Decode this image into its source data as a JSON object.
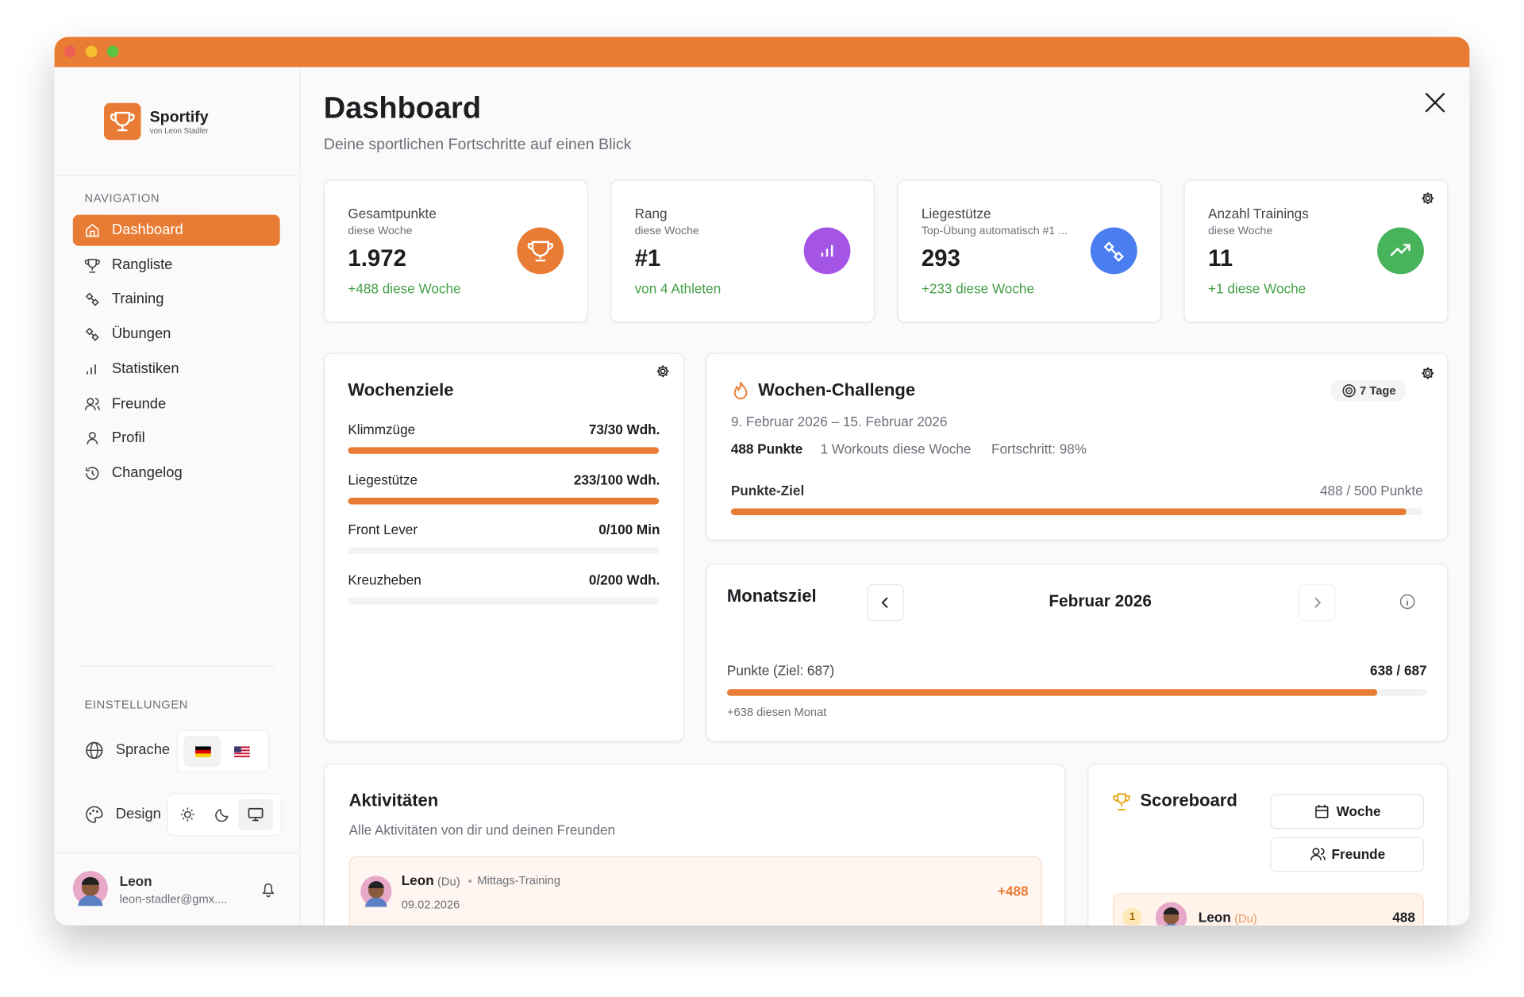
{
  "sidebar": {
    "brand": "Sportify",
    "byline": "von Leon Stadler",
    "nav_heading": "NAVIGATION",
    "nav": [
      "Dashboard",
      "Rangliste",
      "Training",
      "Übungen",
      "Statistiken",
      "Freunde",
      "Profil",
      "Changelog"
    ],
    "settings_heading": "EINSTELLUNGEN",
    "language_label": "Sprache",
    "design_label": "Design",
    "user": {
      "name": "Leon",
      "email": "leon-stadler@gmx...."
    }
  },
  "header": {
    "title": "Dashboard",
    "subtitle": "Deine sportlichen Fortschritte auf einen Blick"
  },
  "stats": [
    {
      "label": "Gesamtpunkte",
      "sub": "diese Woche",
      "value": "1.972",
      "delta": "+488 diese Woche"
    },
    {
      "label": "Rang",
      "sub": "diese Woche",
      "value": "#1",
      "delta": "von 4 Athleten"
    },
    {
      "label": "Liegestütze",
      "sub": "Top-Übung automatisch #1 ...",
      "value": "293",
      "delta": "+233 diese Woche"
    },
    {
      "label": "Anzahl Trainings",
      "sub": "diese Woche",
      "value": "11",
      "delta": "+1 diese Woche"
    }
  ],
  "weekly_goals": {
    "title": "Wochenziele",
    "items": [
      {
        "name": "Klimmzüge",
        "label": "73/30 Wdh.",
        "value": 73,
        "target": 30
      },
      {
        "name": "Liegestütze",
        "label": "233/100 Wdh.",
        "value": 233,
        "target": 100
      },
      {
        "name": "Front Lever",
        "label": "0/100 Min",
        "value": 0,
        "target": 100
      },
      {
        "name": "Kreuzheben",
        "label": "0/200 Wdh.",
        "value": 0,
        "target": 200
      }
    ]
  },
  "challenge": {
    "title": "Wochen-Challenge",
    "badge": "7 Tage",
    "dates": "9. Februar 2026 – 15. Februar 2026",
    "points": "488 Punkte",
    "workouts": "1 Workouts diese Woche",
    "progress": "Fortschritt: 98%",
    "goal_label": "Punkte-Ziel",
    "goal_text": "488 / 500 Punkte",
    "value": 488,
    "target": 500
  },
  "month": {
    "title": "Monatsziel",
    "month": "Februar 2026",
    "label": "Punkte (Ziel: 687)",
    "value_text": "638 / 687",
    "value": 638,
    "target": 687,
    "note": "+638 diesen Monat"
  },
  "activities": {
    "title": "Aktivitäten",
    "subtitle": "Alle Aktivitäten von dir und deinen Freunden",
    "items": [
      {
        "name": "Leon",
        "tag": "(Du)",
        "workout": "Mittags-Training",
        "date": "09.02.2026",
        "points": "+488"
      }
    ]
  },
  "scoreboard": {
    "title": "Scoreboard",
    "buttons": [
      "Woche",
      "Freunde"
    ],
    "rows": [
      {
        "rank": "1",
        "name": "Leon",
        "tag": "(Du)",
        "points": "488"
      }
    ]
  }
}
